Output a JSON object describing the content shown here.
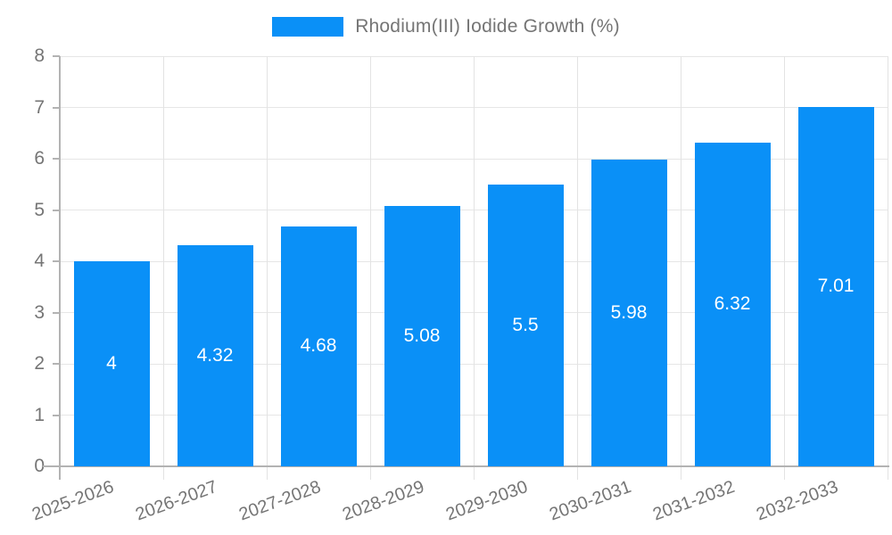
{
  "legend": {
    "label": "Rhodium(III) Iodide Growth (%)"
  },
  "chart_data": {
    "type": "bar",
    "title": "",
    "legend_entries": [
      "Rhodium(III) Iodide Growth (%)"
    ],
    "legend_position": "top-center",
    "categories": [
      "2025-2026",
      "2026-2027",
      "2027-2028",
      "2028-2029",
      "2029-2030",
      "2030-2031",
      "2031-2032",
      "2032-2033"
    ],
    "series": [
      {
        "name": "Rhodium(III) Iodide Growth (%)",
        "values": [
          4,
          4.32,
          4.68,
          5.08,
          5.5,
          5.98,
          6.32,
          7.01
        ],
        "value_labels": [
          "4",
          "4.32",
          "4.68",
          "5.08",
          "5.5",
          "5.98",
          "6.32",
          "7.01"
        ]
      }
    ],
    "xlabel": "",
    "ylabel": "",
    "ylim": [
      0,
      8
    ],
    "yticks": [
      0,
      1,
      2,
      3,
      4,
      5,
      6,
      7,
      8
    ],
    "ytick_labels": [
      "0",
      "1",
      "2",
      "3",
      "4",
      "5",
      "6",
      "7",
      "8"
    ],
    "grid": true,
    "colors": {
      "bar": "#0a90f7",
      "axis_text": "#757575",
      "value_text": "#ffffff",
      "gridline": "#e6e6e6",
      "axis_line": "#b3b3b3"
    }
  }
}
